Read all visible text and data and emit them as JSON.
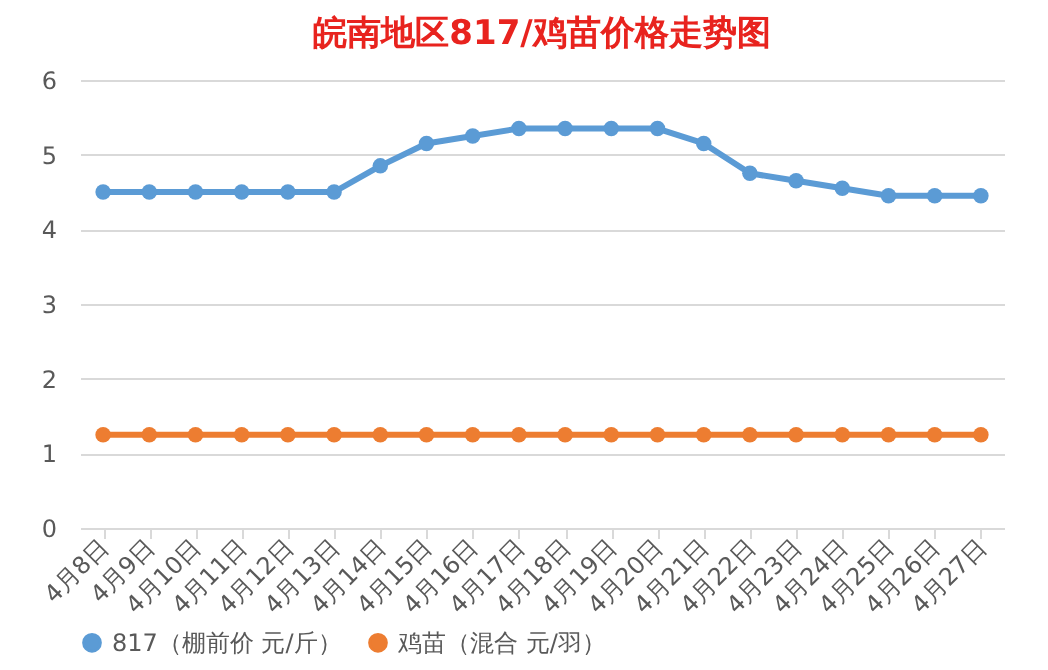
{
  "chart_data": {
    "type": "line",
    "title": "皖南地区817/鸡苗价格走势图",
    "categories": [
      "4月8日",
      "4月9日",
      "4月10日",
      "4月11日",
      "4月12日",
      "4月13日",
      "4月14日",
      "4月15日",
      "4月16日",
      "4月17日",
      "4月18日",
      "4月19日",
      "4月20日",
      "4月21日",
      "4月22日",
      "4月23日",
      "4月24日",
      "4月25日",
      "4月26日",
      "4月27日"
    ],
    "series": [
      {
        "name": "817（棚前价 元/斤）",
        "color": "#5b9bd5",
        "values": [
          4.5,
          4.5,
          4.5,
          4.5,
          4.5,
          4.5,
          4.85,
          5.15,
          5.25,
          5.35,
          5.35,
          5.35,
          5.35,
          5.15,
          4.75,
          4.65,
          4.55,
          4.45,
          4.45,
          4.45
        ]
      },
      {
        "name": "鸡苗（混合 元/羽）",
        "color": "#ed7d31",
        "values": [
          1.25,
          1.25,
          1.25,
          1.25,
          1.25,
          1.25,
          1.25,
          1.25,
          1.25,
          1.25,
          1.25,
          1.25,
          1.25,
          1.25,
          1.25,
          1.25,
          1.25,
          1.25,
          1.25,
          1.25
        ]
      }
    ],
    "ylim": [
      0,
      6
    ],
    "yticks": [
      0,
      1,
      2,
      3,
      4,
      5,
      6
    ],
    "grid": "y",
    "legend": "bottom",
    "marker": "circle",
    "line_style": "solid"
  }
}
